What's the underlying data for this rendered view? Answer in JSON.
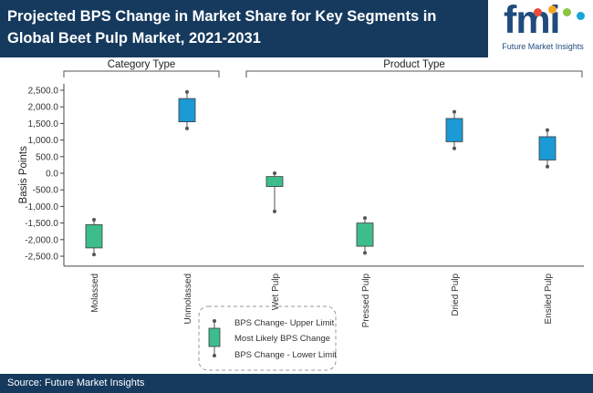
{
  "header": {
    "title": "Projected BPS Change in Market Share for Key Segments in Global Beet Pulp Market, 2021-2031"
  },
  "logo": {
    "brand": "fmi",
    "tagline": "Future Market Insights",
    "colors": [
      "#e84c3d",
      "#f5a623",
      "#8cc63f",
      "#1aa5d8"
    ]
  },
  "footer": {
    "source": "Source: Future Market Insights"
  },
  "chart_data": {
    "type": "box",
    "ylabel": "Basis Points",
    "ylim": [
      -2800,
      2700
    ],
    "yticks": [
      2500,
      2000,
      1500,
      1000,
      500,
      0,
      -500,
      -1000,
      -1500,
      -2000,
      -2500
    ],
    "ytick_labels": [
      "2,500.0",
      "2,000.0",
      "1,500.0",
      "1,000.0",
      "500.0",
      "0.0",
      "-500.0",
      "-1,000.0",
      "-1,500.0",
      "-2,000.0",
      "-2,500.0"
    ],
    "grid": false,
    "groups": [
      {
        "label": "Category Type",
        "categories": [
          "Molassed",
          "Unmolassed"
        ]
      },
      {
        "label": "Product Type",
        "categories": [
          "Wet Pulp",
          "Pressed Pulp",
          "Dried Pulp",
          "Ensiled Pulp"
        ]
      }
    ],
    "categories": [
      "Molassed",
      "Unmolassed",
      "Wet Pulp",
      "Pressed Pulp",
      "Dried Pulp",
      "Ensiled Pulp"
    ],
    "box_colors": [
      "#3dbd8c",
      "#1b9ad6",
      "#3dbd8c",
      "#3dbd8c",
      "#1b9ad6",
      "#1b9ad6"
    ],
    "upper_limit": [
      -1400,
      2450,
      0,
      -1350,
      1850,
      1300
    ],
    "box_top": [
      -1550,
      2250,
      -100,
      -1500,
      1650,
      1100
    ],
    "box_bottom": [
      -2250,
      1550,
      -400,
      -2200,
      950,
      400
    ],
    "lower_limit": [
      -2450,
      1350,
      -1150,
      -2400,
      750,
      200
    ],
    "legend": {
      "upper": "BPS Change- Upper Limit",
      "likely": "Most Likely BPS Change",
      "lower": "BPS Change - Lower Limit",
      "box_color": "#3dbd8c"
    }
  }
}
